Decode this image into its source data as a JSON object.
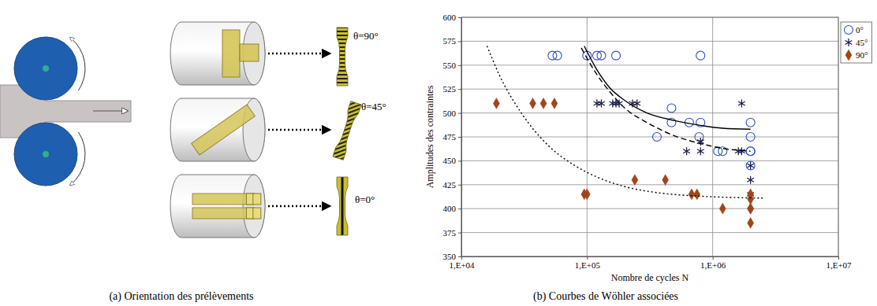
{
  "chart_data": {
    "type": "scatter",
    "x_label": "Nombre de cycles N",
    "y_label": "Amplitudes des contraintes",
    "log": "x",
    "grid": true,
    "legend": "top-right",
    "xlim": [
      10000,
      10000000
    ],
    "xticks": [
      {
        "value": 10000,
        "label": "1,E+04"
      },
      {
        "value": 100000,
        "label": "1,E+05"
      },
      {
        "value": 1000000,
        "label": "1,E+06"
      },
      {
        "value": 10000000,
        "label": "1,E+07"
      }
    ],
    "ylim": [
      350,
      600
    ],
    "yticks": [
      350,
      375,
      400,
      425,
      450,
      475,
      500,
      525,
      550,
      575,
      600
    ],
    "series": [
      {
        "name": "0°",
        "color": "#2e4fc4",
        "marker": "circle",
        "x": [
          53000,
          58000,
          100000,
          120000,
          130000,
          170000,
          800000,
          470000,
          470000,
          650000,
          800000,
          360000,
          780000,
          1100000,
          1200000,
          2000000,
          2000000,
          2000000,
          2000000,
          2000000
        ],
        "values": [
          560,
          560,
          560,
          560,
          560,
          560,
          560,
          505,
          490,
          490,
          490,
          475,
          475,
          460,
          460,
          490,
          475,
          460,
          460,
          445
        ]
      },
      {
        "name": "45°",
        "color": "#1f1f4f",
        "marker": "asterisk",
        "x": [
          120000,
          130000,
          160000,
          170000,
          180000,
          230000,
          250000,
          620000,
          800000,
          800000,
          1600000,
          1700000,
          1700000,
          2000000,
          2000000,
          2000000
        ],
        "values": [
          510,
          510,
          510,
          510,
          510,
          510,
          510,
          460,
          460,
          470,
          460,
          460,
          510,
          445,
          430,
          415
        ]
      },
      {
        "name": "90°",
        "color": "#a3431a",
        "marker": "diamond",
        "x": [
          19000,
          37000,
          45000,
          55000,
          95000,
          100000,
          240000,
          420000,
          680000,
          750000,
          1200000,
          2000000,
          2000000,
          2000000,
          2000000,
          2000000
        ],
        "values": [
          510,
          510,
          510,
          510,
          415,
          415,
          430,
          430,
          415,
          415,
          400,
          415,
          410,
          400,
          400,
          385
        ]
      },
      {
        "type": "line",
        "line_style": "solid",
        "color": "#000000",
        "x": [
          95000,
          120000,
          150000,
          200000,
          300000,
          500000,
          800000,
          1200000,
          2000000
        ],
        "values": [
          570,
          545,
          527,
          513,
          500,
          492,
          487,
          484,
          483
        ]
      },
      {
        "type": "line",
        "line_style": "dashed",
        "color": "#000000",
        "x": [
          90000,
          120000,
          150000,
          200000,
          300000,
          500000,
          800000,
          1200000,
          2000000
        ],
        "values": [
          568,
          540,
          523,
          505,
          490,
          476,
          468,
          463,
          460
        ]
      },
      {
        "type": "line",
        "line_style": "dotted",
        "color": "#000000",
        "x": [
          16000,
          20000,
          30000,
          50000,
          80000,
          120000,
          200000,
          400000,
          800000,
          2500000
        ],
        "values": [
          570,
          540,
          500,
          465,
          445,
          433,
          423,
          416,
          413,
          411
        ]
      }
    ]
  },
  "diagram": {
    "specimens": [
      "θ=90°",
      "θ=45°",
      "θ=0°"
    ]
  },
  "captions": [
    "(a) Orientation des prélèvements",
    "(b) Courbes de Wöhler associées"
  ]
}
